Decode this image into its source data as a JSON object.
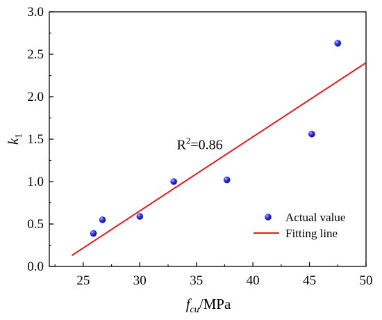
{
  "chart_data": {
    "type": "scatter",
    "xlim": [
      22,
      50
    ],
    "ylim": [
      0.0,
      3.0
    ],
    "x_ticks": [
      25,
      30,
      35,
      40,
      45,
      50
    ],
    "y_ticks": [
      "0.0",
      "0.5",
      "1.0",
      "1.5",
      "2.0",
      "2.5",
      "3.0"
    ],
    "xlabel": {
      "main": "f",
      "sub": "cu",
      "suffix": "/MPa"
    },
    "ylabel": {
      "main": "k",
      "sub": "1"
    },
    "grid": false,
    "legend_position": "lower-right",
    "series": [
      {
        "name": "Actual value",
        "kind": "scatter",
        "color": "#1a1adf",
        "points": [
          [
            25.9,
            0.39
          ],
          [
            26.7,
            0.55
          ],
          [
            30.0,
            0.59
          ],
          [
            33.0,
            1.0
          ],
          [
            37.7,
            1.02
          ],
          [
            45.2,
            1.56
          ],
          [
            47.5,
            2.63
          ]
        ]
      },
      {
        "name": "Fitting line",
        "kind": "line",
        "color": "#e31a1c",
        "points": [
          [
            24.0,
            0.13
          ],
          [
            50.0,
            2.4
          ]
        ]
      }
    ],
    "annotation": {
      "base": "R",
      "sup": "2",
      "rest": "=0.86",
      "x": 35.3,
      "y": 1.38
    }
  }
}
